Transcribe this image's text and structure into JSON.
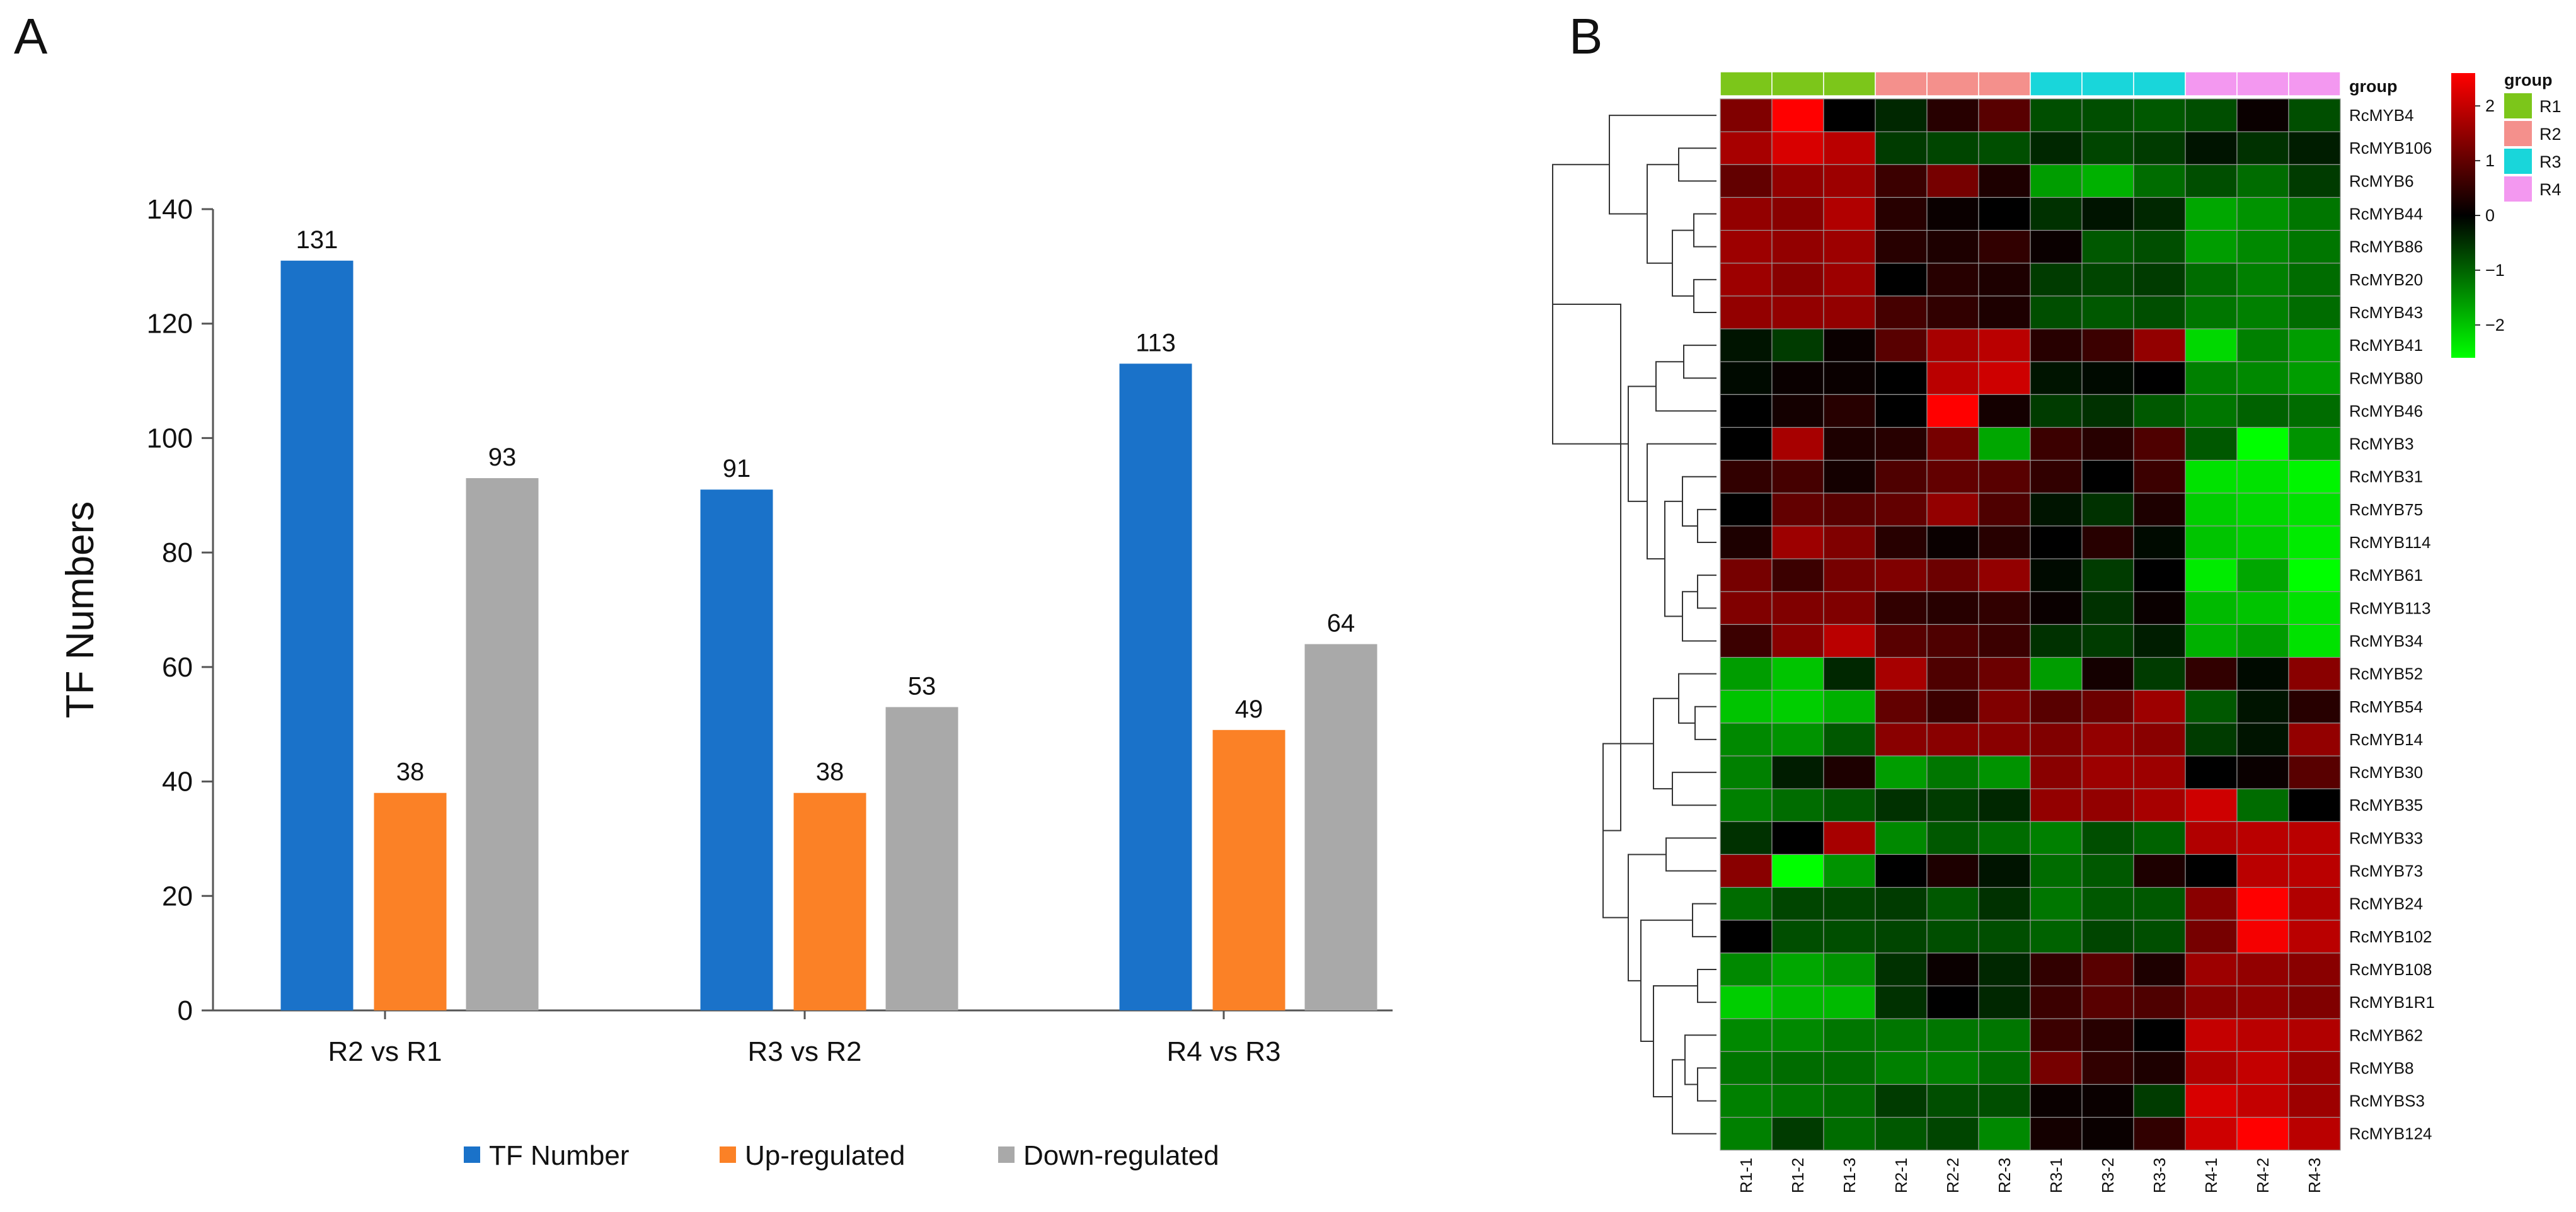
{
  "panels": {
    "a": "A",
    "b": "B"
  },
  "chart_data": [
    {
      "type": "bar",
      "ylabel": "TF Numbers",
      "xlabel": "",
      "ylim": [
        0,
        140
      ],
      "yticks": [
        0,
        20,
        40,
        60,
        80,
        100,
        120,
        140
      ],
      "categories": [
        "R2 vs R1",
        "R3 vs R2",
        "R4 vs R3"
      ],
      "series": [
        {
          "name": "TF Number",
          "color": "#1a72c9",
          "values": [
            131,
            91,
            113
          ]
        },
        {
          "name": "Up-regulated",
          "color": "#fb8126",
          "values": [
            38,
            38,
            49
          ]
        },
        {
          "name": "Down-regulated",
          "color": "#a9a9a9",
          "values": [
            93,
            53,
            64
          ]
        }
      ],
      "legend": "bottom"
    },
    {
      "type": "heatmap",
      "columns": [
        "R1-1",
        "R1-2",
        "R1-3",
        "R2-1",
        "R2-2",
        "R2-3",
        "R3-1",
        "R3-2",
        "R3-3",
        "R4-1",
        "R4-2",
        "R4-3"
      ],
      "column_groups": [
        "R1",
        "R1",
        "R1",
        "R2",
        "R2",
        "R2",
        "R3",
        "R3",
        "R3",
        "R4",
        "R4",
        "R4"
      ],
      "group_title": "group",
      "groups": [
        {
          "name": "R1",
          "color": "#7cc61a"
        },
        {
          "name": "R2",
          "color": "#f4908c"
        },
        {
          "name": "R3",
          "color": "#19d6da"
        },
        {
          "name": "R4",
          "color": "#f398f0"
        }
      ],
      "colorbar": {
        "min": -2.6,
        "max": 2.6,
        "ticks": [
          2,
          1,
          0,
          -1,
          -2
        ],
        "tick_labels": [
          "2",
          "1",
          "0",
          "−1",
          "−2"
        ]
      },
      "rows": [
        "RcMYB4",
        "RcMYB106",
        "RcMYB6",
        "RcMYB44",
        "RcMYB86",
        "RcMYB20",
        "RcMYB43",
        "RcMYB41",
        "RcMYB80",
        "RcMYB46",
        "RcMYB3",
        "RcMYB31",
        "RcMYB75",
        "RcMYB114",
        "RcMYB61",
        "RcMYB113",
        "RcMYB34",
        "RcMYB52",
        "RcMYB54",
        "RcMYB14",
        "RcMYB30",
        "RcMYB35",
        "RcMYB33",
        "RcMYB73",
        "RcMYB24",
        "RcMYB102",
        "RcMYB108",
        "RcMYB1R1",
        "RcMYB62",
        "RcMYB8",
        "RcMYBS3",
        "RcMYB124"
      ],
      "values": [
        [
          1.3,
          2.6,
          0.0,
          -0.4,
          0.4,
          0.9,
          -0.8,
          -0.8,
          -0.9,
          -0.8,
          0.1,
          -0.8
        ],
        [
          1.7,
          2.2,
          1.9,
          -0.6,
          -0.7,
          -0.8,
          -0.4,
          -0.7,
          -0.6,
          -0.2,
          -0.5,
          -0.3
        ],
        [
          1.0,
          1.5,
          1.6,
          0.6,
          1.2,
          0.3,
          -1.6,
          -1.8,
          -1.1,
          -0.8,
          -1.1,
          -0.6
        ],
        [
          1.5,
          1.4,
          1.8,
          0.4,
          0.1,
          0.0,
          -0.5,
          -0.2,
          -0.4,
          -1.7,
          -1.5,
          -1.2
        ],
        [
          1.6,
          1.5,
          1.6,
          0.4,
          0.3,
          0.5,
          0.1,
          -0.9,
          -0.8,
          -1.6,
          -1.4,
          -1.2
        ],
        [
          1.6,
          1.4,
          1.6,
          0.0,
          0.4,
          0.3,
          -0.6,
          -0.7,
          -0.6,
          -1.1,
          -1.3,
          -1.1
        ],
        [
          1.5,
          1.5,
          1.5,
          0.7,
          0.5,
          0.3,
          -0.8,
          -0.9,
          -0.8,
          -1.2,
          -1.3,
          -1.1
        ],
        [
          -0.2,
          -0.6,
          0.1,
          0.9,
          1.7,
          1.9,
          0.4,
          0.6,
          1.5,
          -2.2,
          -1.3,
          -1.6
        ],
        [
          -0.1,
          0.1,
          0.1,
          0.0,
          1.9,
          2.1,
          -0.2,
          -0.1,
          0.0,
          -1.3,
          -1.4,
          -1.6
        ],
        [
          0.0,
          0.2,
          0.4,
          0.0,
          2.7,
          0.2,
          -0.6,
          -0.5,
          -0.9,
          -1.2,
          -1.0,
          -1.1
        ],
        [
          0.0,
          1.7,
          0.3,
          0.4,
          1.2,
          -1.7,
          0.6,
          0.4,
          0.8,
          -0.9,
          -2.6,
          -1.5
        ],
        [
          0.5,
          0.7,
          0.2,
          0.8,
          1.0,
          0.9,
          0.5,
          0.0,
          0.6,
          -2.3,
          -2.3,
          -2.5
        ],
        [
          0.0,
          1.0,
          0.9,
          1.0,
          1.5,
          0.8,
          -0.2,
          -0.5,
          0.3,
          -2.1,
          -2.2,
          -2.3
        ],
        [
          0.3,
          1.6,
          1.3,
          0.4,
          0.1,
          0.4,
          0.0,
          0.4,
          -0.1,
          -2.0,
          -2.1,
          -2.4
        ],
        [
          1.2,
          0.6,
          1.2,
          1.3,
          1.1,
          1.5,
          -0.1,
          -0.6,
          0.0,
          -2.4,
          -1.7,
          -2.6
        ],
        [
          1.3,
          1.3,
          1.3,
          0.5,
          0.4,
          0.5,
          0.1,
          -0.5,
          0.1,
          -1.9,
          -2.0,
          -2.3
        ],
        [
          0.6,
          1.4,
          1.9,
          0.9,
          0.8,
          0.6,
          -0.5,
          -0.6,
          -0.3,
          -1.8,
          -1.6,
          -2.3
        ],
        [
          -1.6,
          -2.0,
          -0.4,
          1.7,
          0.8,
          1.1,
          -1.6,
          0.2,
          -0.6,
          0.5,
          -0.1,
          1.4
        ],
        [
          -2.0,
          -2.1,
          -1.8,
          1.0,
          0.6,
          1.3,
          0.9,
          1.1,
          1.6,
          -0.9,
          -0.2,
          0.4
        ],
        [
          -1.4,
          -1.5,
          -0.9,
          1.4,
          1.4,
          1.4,
          1.3,
          1.5,
          1.4,
          -0.6,
          -0.2,
          1.5
        ],
        [
          -1.3,
          -0.3,
          0.3,
          -1.6,
          -1.2,
          -1.5,
          1.4,
          1.6,
          1.6,
          0.0,
          0.1,
          0.9
        ],
        [
          -1.3,
          -1.1,
          -0.9,
          -0.5,
          -0.6,
          -0.4,
          1.5,
          1.5,
          1.7,
          2.1,
          -1.1,
          0.0
        ],
        [
          -0.5,
          0.0,
          1.7,
          -1.4,
          -0.9,
          -1.1,
          -1.3,
          -0.8,
          -1.0,
          1.8,
          1.9,
          1.9
        ],
        [
          1.4,
          -2.6,
          -1.5,
          0.0,
          0.3,
          -0.2,
          -1.1,
          -0.9,
          0.3,
          0.0,
          1.9,
          1.9
        ],
        [
          -1.1,
          -0.7,
          -0.7,
          -0.6,
          -0.9,
          -0.5,
          -1.2,
          -0.9,
          -0.9,
          1.4,
          2.8,
          1.8
        ],
        [
          0.0,
          -0.8,
          -0.8,
          -0.7,
          -0.8,
          -0.8,
          -1.0,
          -0.7,
          -0.8,
          1.2,
          2.5,
          1.9
        ],
        [
          -1.4,
          -1.7,
          -1.5,
          -0.5,
          0.1,
          -0.4,
          0.5,
          0.9,
          0.3,
          1.6,
          1.5,
          1.4
        ],
        [
          -2.1,
          -1.9,
          -1.9,
          -0.5,
          0.0,
          -0.4,
          0.6,
          0.9,
          0.8,
          1.4,
          1.5,
          1.3
        ],
        [
          -1.4,
          -1.4,
          -1.2,
          -1.2,
          -1.2,
          -1.2,
          0.6,
          0.4,
          0.0,
          2.0,
          1.9,
          1.8
        ],
        [
          -1.2,
          -1.1,
          -1.1,
          -1.3,
          -1.3,
          -1.1,
          1.2,
          0.5,
          0.3,
          1.8,
          2.0,
          1.6
        ],
        [
          -1.3,
          -1.2,
          -1.1,
          -0.6,
          -0.8,
          -0.8,
          0.1,
          0.1,
          -0.6,
          2.2,
          2.0,
          1.6
        ],
        [
          -1.3,
          -0.6,
          -1.1,
          -0.9,
          -0.7,
          -1.4,
          0.2,
          0.1,
          0.5,
          2.1,
          2.6,
          1.9
        ]
      ]
    }
  ]
}
